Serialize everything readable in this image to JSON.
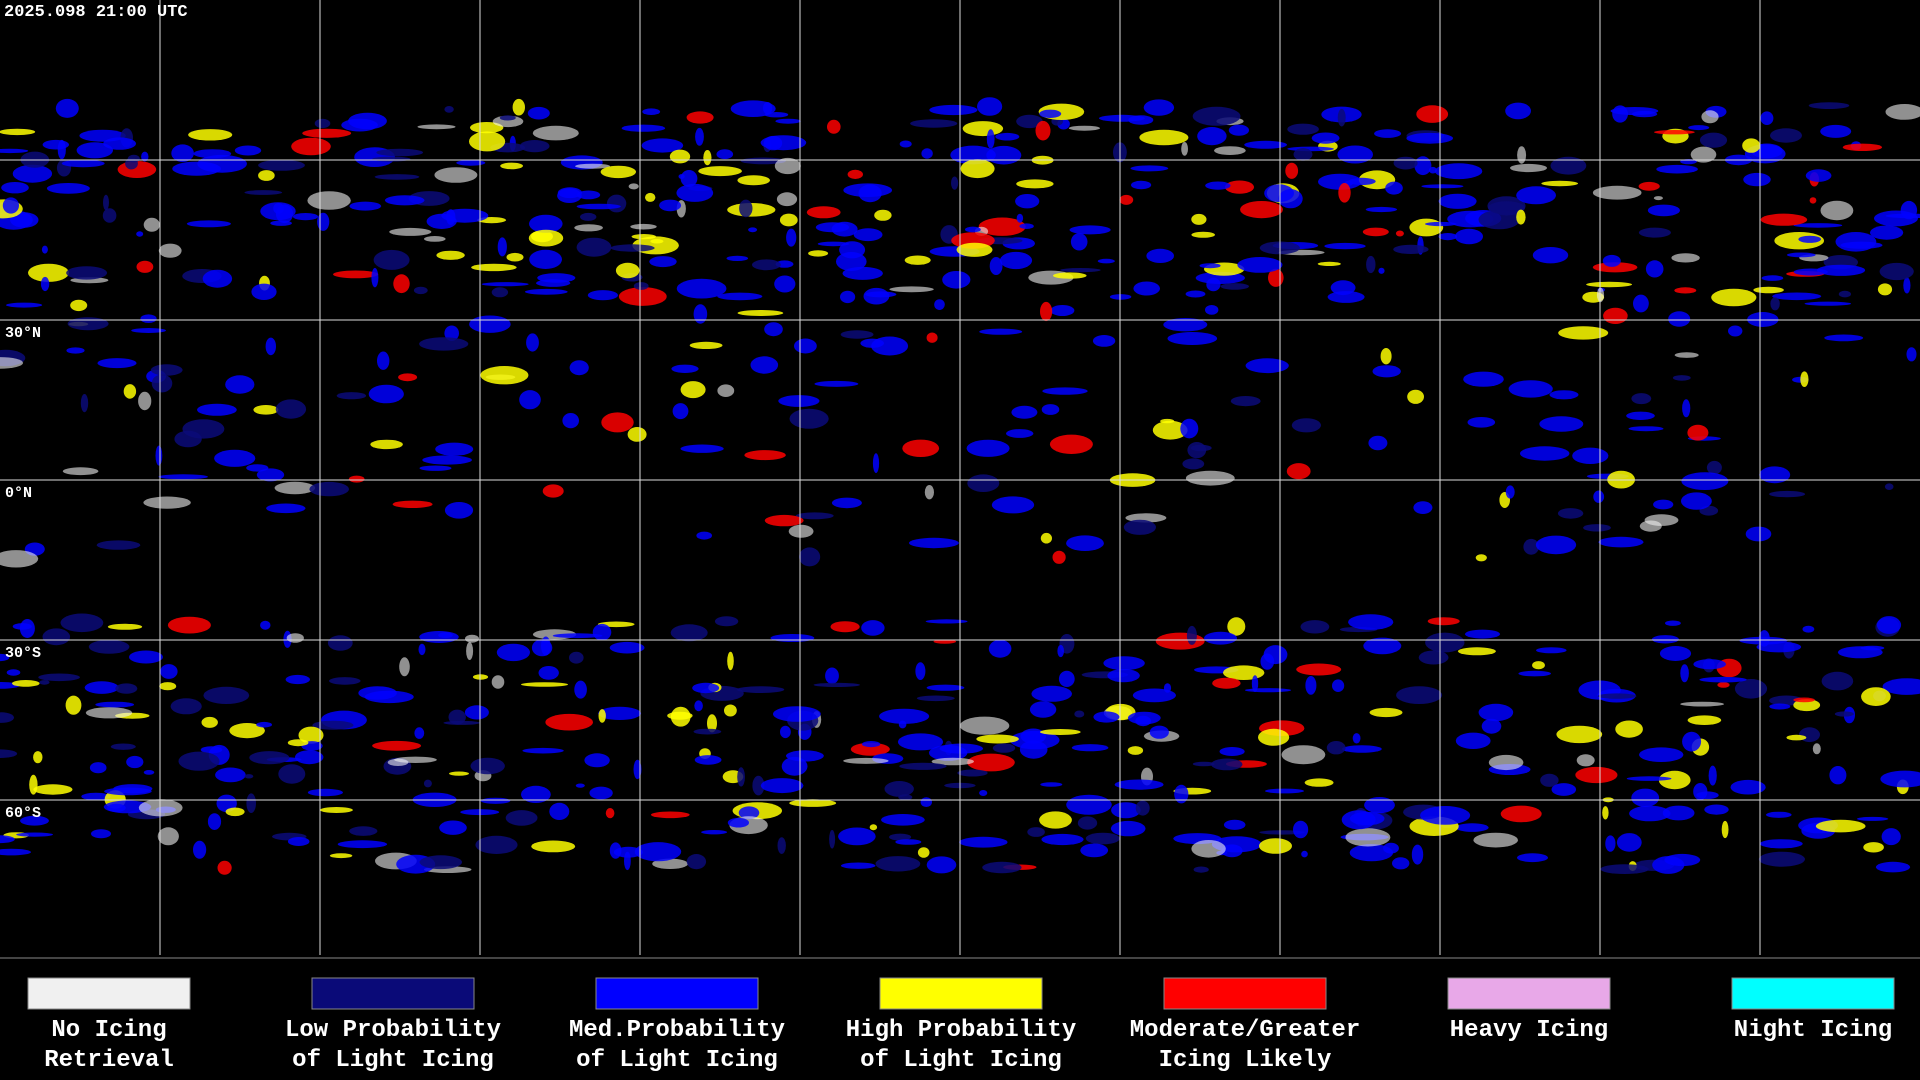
{
  "header": {
    "timestamp": "2025.098 21:00 UTC"
  },
  "map": {
    "latitude_labels": [
      "30°N",
      "0°N",
      "30°S",
      "60°S"
    ]
  },
  "legend": [
    {
      "lines": [
        "No Icing",
        "Retrieval"
      ],
      "color": "#f0f0f0"
    },
    {
      "lines": [
        "Low Probability",
        "of Light Icing"
      ],
      "color": "#0a0a78"
    },
    {
      "lines": [
        "Med.Probability",
        "of Light Icing"
      ],
      "color": "#0000ff"
    },
    {
      "lines": [
        "High Probability",
        "of Light Icing"
      ],
      "color": "#ffff00"
    },
    {
      "lines": [
        "Moderate/Greater",
        "Icing Likely"
      ],
      "color": "#ff0000"
    },
    {
      "lines": [
        "Heavy Icing"
      ],
      "color": "#e8a8e8"
    },
    {
      "lines": [
        "Night Icing"
      ],
      "color": "#00ffff"
    }
  ]
}
